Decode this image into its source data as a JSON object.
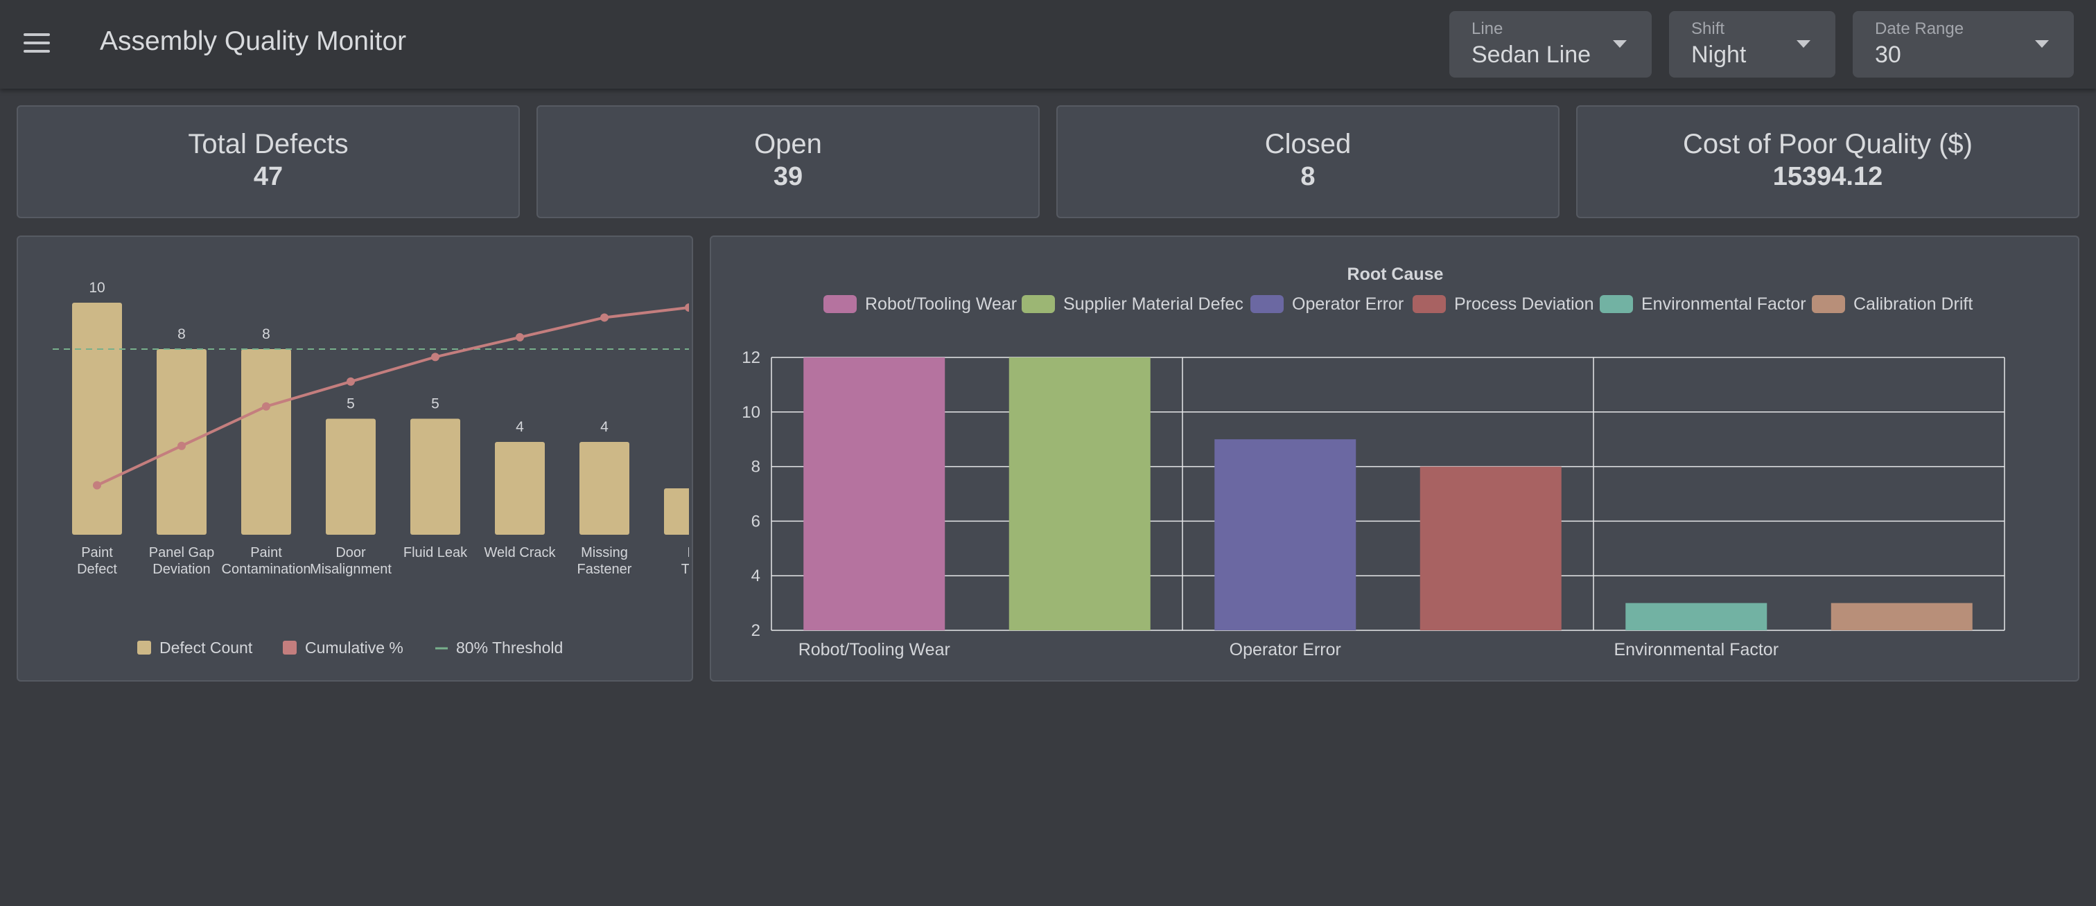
{
  "app_title": "Assembly Quality Monitor",
  "filters": {
    "line": {
      "label": "Line",
      "value": "Sedan Line"
    },
    "shift": {
      "label": "Shift",
      "value": "Night"
    },
    "date_range": {
      "label": "Date Range",
      "value": "30"
    }
  },
  "kpis": [
    {
      "title": "Total Defects",
      "value": "47"
    },
    {
      "title": "Open",
      "value": "39"
    },
    {
      "title": "Closed",
      "value": "8"
    },
    {
      "title": "Cost of Poor Quality ($)",
      "value": "15394.12"
    }
  ],
  "colors": {
    "page_bg": "#393b40",
    "card_bg": "#454951",
    "bar_tan": "#cdb887",
    "cumulative_line": "#c47e7e",
    "threshold": "#78b08c"
  },
  "chart_data": [
    {
      "type": "bar",
      "title": "",
      "categories": [
        [
          "Paint",
          "Defect"
        ],
        [
          "Panel Gap",
          "Deviation"
        ],
        [
          "Paint",
          "Contamination"
        ],
        [
          "Door",
          "Misalignment"
        ],
        [
          "Fluid Leak"
        ],
        [
          "Weld Crack"
        ],
        [
          "Missing",
          "Fastener"
        ],
        [
          "I",
          "Tri"
        ]
      ],
      "series": [
        {
          "name": "Defect Count",
          "type": "bar",
          "values": [
            10,
            8,
            8,
            5,
            5,
            4,
            4,
            2
          ],
          "color": "#cdb887"
        },
        {
          "name": "Cumulative %",
          "type": "line",
          "values": [
            21.3,
            38.3,
            55.3,
            66.0,
            76.6,
            85.1,
            93.6,
            97.9
          ],
          "color": "#c47e7e"
        },
        {
          "name": "80% Threshold",
          "type": "line",
          "value": 80,
          "color": "#78b08c"
        }
      ],
      "data_labels": [
        "10",
        "8",
        "8",
        "5",
        "5",
        "4",
        "4",
        ""
      ],
      "ylim": [
        0,
        10.5
      ],
      "y2lim": [
        0,
        100
      ],
      "legend": "bottom-center",
      "grid": false
    },
    {
      "type": "bar",
      "title": "Root Cause",
      "categories": [
        "Robot/Tooling Wear",
        "Supplier Material Defect",
        "Operator Error",
        "Process Deviation",
        "Environmental Factor",
        "Calibration Drift"
      ],
      "legend_labels": [
        "Robot/Tooling Wear",
        "Supplier Material Defec",
        "Operator Error",
        "Process Deviation",
        "Environmental Factor",
        "Calibration Drift"
      ],
      "x_tick_labels": [
        "Robot/Tooling Wear",
        "Operator Error",
        "Environmental Factor"
      ],
      "values": [
        12,
        12,
        9,
        8,
        3,
        3
      ],
      "colors": [
        "#b5739f",
        "#9cb674",
        "#6b68a2",
        "#a86262",
        "#72b2a3",
        "#b88f79"
      ],
      "yticks": [
        2,
        4,
        6,
        8,
        10,
        12
      ],
      "ylim": [
        2,
        12
      ],
      "legend": "top-center",
      "grid": true
    }
  ]
}
